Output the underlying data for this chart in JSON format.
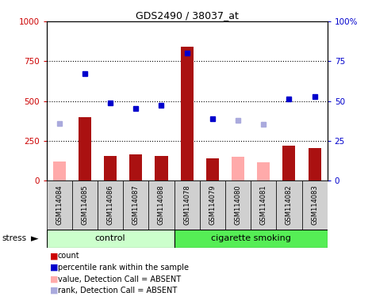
{
  "title": "GDS2490 / 38037_at",
  "samples": [
    "GSM114084",
    "GSM114085",
    "GSM114086",
    "GSM114087",
    "GSM114088",
    "GSM114078",
    "GSM114079",
    "GSM114080",
    "GSM114081",
    "GSM114082",
    "GSM114083"
  ],
  "count_values": [
    null,
    400,
    155,
    165,
    155,
    840,
    140,
    null,
    null,
    220,
    205
  ],
  "count_absent_values": [
    120,
    null,
    null,
    null,
    null,
    null,
    null,
    150,
    115,
    null,
    null
  ],
  "rank_values": [
    null,
    67,
    49,
    45.5,
    47.5,
    80,
    39,
    null,
    null,
    51.5,
    53
  ],
  "rank_absent_values": [
    36,
    null,
    null,
    null,
    null,
    null,
    null,
    38,
    35.5,
    null,
    null
  ],
  "left_ylim": [
    0,
    1000
  ],
  "right_ylim": [
    0,
    100
  ],
  "left_yticks": [
    0,
    250,
    500,
    750,
    1000
  ],
  "right_yticks": [
    0,
    25,
    50,
    75,
    100
  ],
  "bar_color": "#aa1111",
  "bar_absent_color": "#ffaaaa",
  "rank_color": "#0000cc",
  "rank_absent_color": "#aaaadd",
  "control_bg": "#ccffcc",
  "smoking_bg": "#55ee55",
  "label_bg": "#d0d0d0",
  "ctrl_count": 5,
  "legend_items": [
    {
      "label": "count",
      "color": "#cc0000"
    },
    {
      "label": "percentile rank within the sample",
      "color": "#0000cc"
    },
    {
      "label": "value, Detection Call = ABSENT",
      "color": "#ffaaaa"
    },
    {
      "label": "rank, Detection Call = ABSENT",
      "color": "#aaaadd"
    }
  ]
}
